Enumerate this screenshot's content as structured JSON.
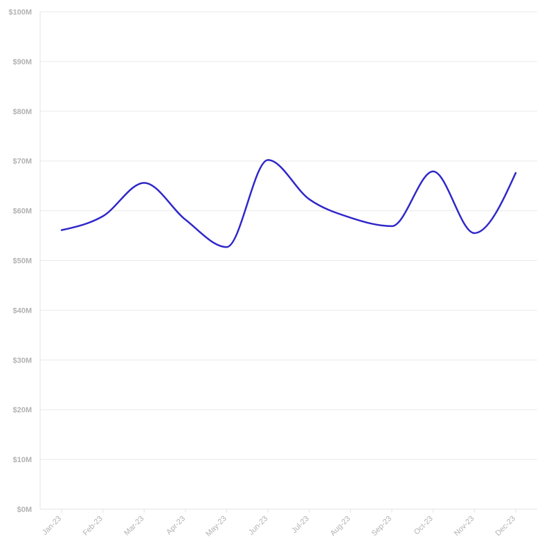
{
  "chart_data": {
    "type": "line",
    "title": "",
    "xlabel": "",
    "ylabel": "",
    "categories": [
      "Jan-23",
      "Feb-23",
      "Mar-23",
      "Apr-23",
      "May-23",
      "Jun-23",
      "Jul-23",
      "Aug-23",
      "Sep-23",
      "Oct-23",
      "Nov-23",
      "Dec-23"
    ],
    "series": [
      {
        "color": "#2f27c9",
        "values": [
          56.1,
          58.9,
          65.6,
          58.2,
          52.7,
          70.2,
          62.3,
          58.6,
          56.9,
          67.9,
          55.5,
          67.6
        ]
      }
    ],
    "ylim": [
      0,
      100
    ],
    "y_ticks": [
      0,
      10,
      20,
      30,
      40,
      50,
      60,
      70,
      80,
      90,
      100
    ],
    "y_tick_labels": [
      "$0M",
      "$10M",
      "$20M",
      "$30M",
      "$40M",
      "$50M",
      "$60M",
      "$70M",
      "$80M",
      "$90M",
      "$100M"
    ],
    "grid": true,
    "legend": "none"
  }
}
